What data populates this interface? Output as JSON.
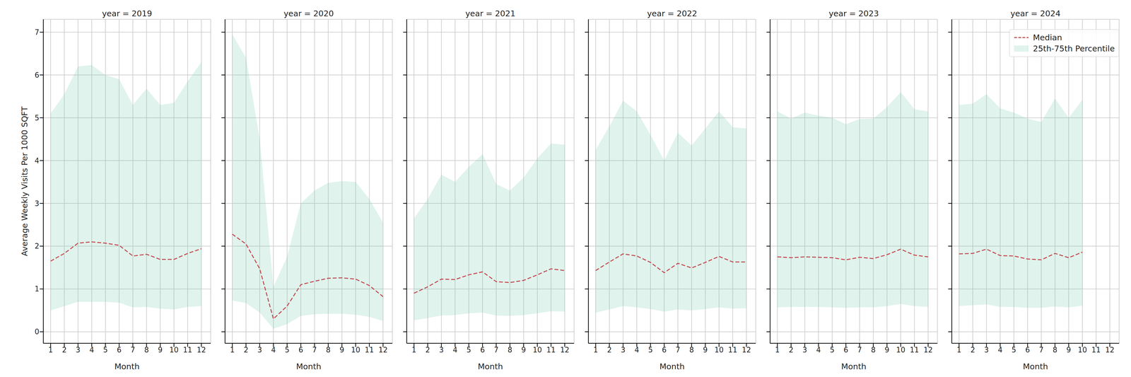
{
  "chart_data": [
    {
      "type": "line",
      "title": "year = 2019",
      "xlabel": "Month",
      "ylabel": "Average Weekly Visits Per 1000 SQFT",
      "x": [
        1,
        2,
        3,
        4,
        5,
        6,
        7,
        8,
        9,
        10,
        11,
        12
      ],
      "xlim": [
        0.47,
        12.68
      ],
      "xticks": [
        1,
        2,
        3,
        4,
        5,
        6,
        7,
        8,
        9,
        10,
        11,
        12
      ],
      "ylim": [
        -0.27,
        7.3
      ],
      "yticks": [
        0,
        1,
        2,
        3,
        4,
        5,
        6,
        7
      ],
      "grid": true,
      "series": [
        {
          "type": "line",
          "line_style": "dashed",
          "color": "#c44e52",
          "values": [
            1.65,
            1.83,
            2.07,
            2.1,
            2.07,
            2.02,
            1.77,
            1.81,
            1.69,
            1.69,
            1.83,
            1.94
          ]
        },
        {
          "type": "area",
          "color": "#66c2a5",
          "low": [
            0.5,
            0.6,
            0.7,
            0.7,
            0.7,
            0.68,
            0.57,
            0.58,
            0.54,
            0.52,
            0.58,
            0.6
          ],
          "high": [
            5.1,
            5.55,
            6.2,
            6.23,
            6.0,
            5.9,
            5.3,
            5.68,
            5.3,
            5.35,
            5.85,
            6.3
          ]
        }
      ]
    },
    {
      "type": "line",
      "title": "year = 2020",
      "xlabel": "Month",
      "x": [
        1,
        2,
        3,
        4,
        5,
        6,
        7,
        8,
        9,
        10,
        11,
        12
      ],
      "xlim": [
        0.47,
        12.68
      ],
      "xticks": [
        1,
        2,
        3,
        4,
        5,
        6,
        7,
        8,
        9,
        10,
        11,
        12
      ],
      "ylim": [
        -0.27,
        7.3
      ],
      "yticks": [
        0,
        1,
        2,
        3,
        4,
        5,
        6,
        7
      ],
      "grid": true,
      "tick_labels": "x",
      "series": [
        {
          "type": "line",
          "line_style": "dashed",
          "color": "#c44e52",
          "values": [
            2.28,
            2.05,
            1.47,
            0.3,
            0.6,
            1.1,
            1.18,
            1.25,
            1.26,
            1.23,
            1.08,
            0.82
          ]
        },
        {
          "type": "area",
          "color": "#66c2a5",
          "low": [
            0.73,
            0.67,
            0.45,
            0.07,
            0.18,
            0.37,
            0.41,
            0.42,
            0.42,
            0.4,
            0.35,
            0.25
          ],
          "high": [
            6.95,
            6.4,
            4.5,
            1.05,
            1.75,
            3.0,
            3.3,
            3.48,
            3.52,
            3.5,
            3.1,
            2.55
          ]
        }
      ]
    },
    {
      "type": "line",
      "title": "year = 2021",
      "xlabel": "Month",
      "x": [
        1,
        2,
        3,
        4,
        5,
        6,
        7,
        8,
        9,
        10,
        11,
        12
      ],
      "xlim": [
        0.47,
        12.68
      ],
      "xticks": [
        1,
        2,
        3,
        4,
        5,
        6,
        7,
        8,
        9,
        10,
        11,
        12
      ],
      "ylim": [
        -0.27,
        7.3
      ],
      "yticks": [
        0,
        1,
        2,
        3,
        4,
        5,
        6,
        7
      ],
      "grid": true,
      "tick_labels": "x",
      "series": [
        {
          "type": "line",
          "line_style": "dashed",
          "color": "#c44e52",
          "values": [
            0.9,
            1.05,
            1.23,
            1.22,
            1.33,
            1.4,
            1.17,
            1.15,
            1.2,
            1.33,
            1.47,
            1.43
          ]
        },
        {
          "type": "area",
          "color": "#66c2a5",
          "low": [
            0.27,
            0.32,
            0.38,
            0.39,
            0.43,
            0.45,
            0.38,
            0.37,
            0.39,
            0.43,
            0.48,
            0.47
          ],
          "high": [
            2.65,
            3.1,
            3.67,
            3.5,
            3.85,
            4.15,
            3.45,
            3.3,
            3.6,
            4.05,
            4.4,
            4.37
          ]
        }
      ]
    },
    {
      "type": "line",
      "title": "year = 2022",
      "xlabel": "Month",
      "x": [
        1,
        2,
        3,
        4,
        5,
        6,
        7,
        8,
        9,
        10,
        11,
        12
      ],
      "xlim": [
        0.47,
        12.68
      ],
      "xticks": [
        1,
        2,
        3,
        4,
        5,
        6,
        7,
        8,
        9,
        10,
        11,
        12
      ],
      "ylim": [
        -0.27,
        7.3
      ],
      "yticks": [
        0,
        1,
        2,
        3,
        4,
        5,
        6,
        7
      ],
      "grid": true,
      "tick_labels": "x",
      "series": [
        {
          "type": "line",
          "line_style": "dashed",
          "color": "#c44e52",
          "values": [
            1.43,
            1.63,
            1.82,
            1.77,
            1.62,
            1.38,
            1.6,
            1.49,
            1.62,
            1.76,
            1.63,
            1.63
          ]
        },
        {
          "type": "area",
          "color": "#66c2a5",
          "low": [
            0.45,
            0.52,
            0.6,
            0.57,
            0.53,
            0.47,
            0.52,
            0.5,
            0.53,
            0.57,
            0.54,
            0.55
          ],
          "high": [
            4.25,
            4.8,
            5.4,
            5.15,
            4.6,
            4.0,
            4.65,
            4.35,
            4.75,
            5.15,
            4.78,
            4.75
          ]
        }
      ]
    },
    {
      "type": "line",
      "title": "year = 2023",
      "xlabel": "Month",
      "x": [
        1,
        2,
        3,
        4,
        5,
        6,
        7,
        8,
        9,
        10,
        11,
        12
      ],
      "xlim": [
        0.47,
        12.68
      ],
      "xticks": [
        1,
        2,
        3,
        4,
        5,
        6,
        7,
        8,
        9,
        10,
        11,
        12
      ],
      "ylim": [
        -0.27,
        7.3
      ],
      "yticks": [
        0,
        1,
        2,
        3,
        4,
        5,
        6,
        7
      ],
      "grid": true,
      "tick_labels": "x",
      "series": [
        {
          "type": "line",
          "line_style": "dashed",
          "color": "#c44e52",
          "values": [
            1.75,
            1.73,
            1.75,
            1.74,
            1.73,
            1.68,
            1.74,
            1.71,
            1.8,
            1.93,
            1.79,
            1.75
          ]
        },
        {
          "type": "area",
          "color": "#66c2a5",
          "low": [
            0.57,
            0.58,
            0.58,
            0.58,
            0.57,
            0.56,
            0.57,
            0.57,
            0.6,
            0.65,
            0.6,
            0.58
          ],
          "high": [
            5.15,
            4.98,
            5.12,
            5.05,
            5.0,
            4.85,
            4.97,
            4.98,
            5.25,
            5.6,
            5.2,
            5.15
          ]
        }
      ]
    },
    {
      "type": "line",
      "title": "year = 2024",
      "xlabel": "Month",
      "x": [
        1,
        2,
        3,
        4,
        5,
        6,
        7,
        8,
        9,
        10
      ],
      "xlim": [
        0.47,
        12.68
      ],
      "xticks": [
        1,
        2,
        3,
        4,
        5,
        6,
        7,
        8,
        9,
        10,
        11,
        12
      ],
      "ylim": [
        -0.27,
        7.3
      ],
      "yticks": [
        0,
        1,
        2,
        3,
        4,
        5,
        6,
        7
      ],
      "grid": true,
      "tick_labels": "x",
      "legend": "upper right",
      "series": [
        {
          "name": "Median",
          "type": "line",
          "line_style": "dashed",
          "color": "#c44e52",
          "values": [
            1.82,
            1.83,
            1.93,
            1.78,
            1.77,
            1.7,
            1.68,
            1.83,
            1.73,
            1.86
          ]
        },
        {
          "name": "25th-75th Percentile",
          "type": "area",
          "color": "#66c2a5",
          "low": [
            0.6,
            0.62,
            0.64,
            0.58,
            0.58,
            0.56,
            0.56,
            0.59,
            0.57,
            0.61
          ],
          "high": [
            5.3,
            5.33,
            5.55,
            5.22,
            5.12,
            4.98,
            4.9,
            5.45,
            5.0,
            5.42
          ]
        }
      ]
    }
  ]
}
